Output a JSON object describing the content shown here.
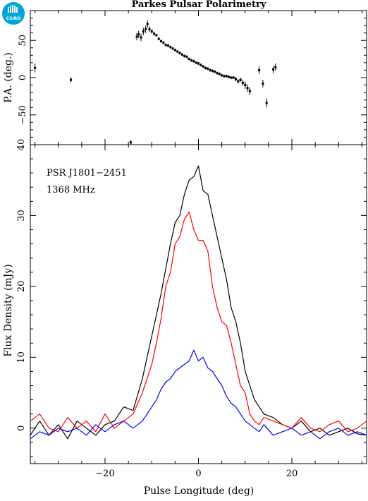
{
  "logo": {
    "text": "CSIRO",
    "color": "#00a6d6"
  },
  "chart_data": [
    {
      "type": "scatter",
      "panel": "position-angle",
      "title": "Parkes Pulsar Polarimetry",
      "ylabel": "P.A. (deg.)",
      "xlim": [
        -36,
        36
      ],
      "ylim": [
        -90,
        90
      ],
      "yticks": [
        -50,
        0,
        50
      ],
      "xticks": [
        -20,
        0,
        20
      ],
      "points": [
        {
          "x": -35.0,
          "y": 13,
          "err": 6
        },
        {
          "x": -27.3,
          "y": -3,
          "err": 4
        },
        {
          "x": -14.5,
          "y": -87,
          "err": 3
        },
        {
          "x": -13.2,
          "y": 55,
          "err": 5
        },
        {
          "x": -12.8,
          "y": 58,
          "err": 5
        },
        {
          "x": -12.3,
          "y": 54,
          "err": 5
        },
        {
          "x": -11.8,
          "y": 62,
          "err": 5
        },
        {
          "x": -11.3,
          "y": 65,
          "err": 5
        },
        {
          "x": -10.9,
          "y": 72,
          "err": 5
        },
        {
          "x": -10.5,
          "y": 65,
          "err": 4
        },
        {
          "x": -10.0,
          "y": 62,
          "err": 3
        },
        {
          "x": -9.5,
          "y": 59,
          "err": 3
        },
        {
          "x": -9.0,
          "y": 57,
          "err": 2
        },
        {
          "x": -8.5,
          "y": 52,
          "err": 2
        },
        {
          "x": -8.0,
          "y": 49,
          "err": 2
        },
        {
          "x": -7.5,
          "y": 47,
          "err": 2
        },
        {
          "x": -7.0,
          "y": 44,
          "err": 2
        },
        {
          "x": -6.5,
          "y": 43,
          "err": 2
        },
        {
          "x": -6.0,
          "y": 41,
          "err": 2
        },
        {
          "x": -5.5,
          "y": 39,
          "err": 2
        },
        {
          "x": -5.0,
          "y": 37,
          "err": 2
        },
        {
          "x": -4.5,
          "y": 35,
          "err": 2
        },
        {
          "x": -4.0,
          "y": 33,
          "err": 2
        },
        {
          "x": -3.5,
          "y": 31,
          "err": 2
        },
        {
          "x": -3.0,
          "y": 29,
          "err": 2
        },
        {
          "x": -2.5,
          "y": 28,
          "err": 2
        },
        {
          "x": -2.0,
          "y": 25,
          "err": 2
        },
        {
          "x": -1.5,
          "y": 23,
          "err": 2
        },
        {
          "x": -1.0,
          "y": 22,
          "err": 2
        },
        {
          "x": -0.5,
          "y": 20,
          "err": 2
        },
        {
          "x": 0.0,
          "y": 19,
          "err": 2
        },
        {
          "x": 0.5,
          "y": 17,
          "err": 2
        },
        {
          "x": 1.0,
          "y": 15,
          "err": 2
        },
        {
          "x": 1.5,
          "y": 13,
          "err": 2
        },
        {
          "x": 2.0,
          "y": 12,
          "err": 2
        },
        {
          "x": 2.5,
          "y": 10,
          "err": 2
        },
        {
          "x": 3.0,
          "y": 9,
          "err": 2
        },
        {
          "x": 3.5,
          "y": 8,
          "err": 2
        },
        {
          "x": 4.0,
          "y": 6,
          "err": 2
        },
        {
          "x": 4.5,
          "y": 5,
          "err": 2
        },
        {
          "x": 5.0,
          "y": 3,
          "err": 2
        },
        {
          "x": 5.5,
          "y": 2,
          "err": 2
        },
        {
          "x": 6.0,
          "y": 2,
          "err": 2
        },
        {
          "x": 6.5,
          "y": 1,
          "err": 2
        },
        {
          "x": 7.0,
          "y": 0,
          "err": 2
        },
        {
          "x": 7.5,
          "y": 0,
          "err": 2
        },
        {
          "x": 8.0,
          "y": -2,
          "err": 3
        },
        {
          "x": 8.5,
          "y": -5,
          "err": 3
        },
        {
          "x": 9.0,
          "y": -3,
          "err": 3
        },
        {
          "x": 9.5,
          "y": -7,
          "err": 4
        },
        {
          "x": 10.0,
          "y": -10,
          "err": 5
        },
        {
          "x": 10.5,
          "y": -14,
          "err": 5
        },
        {
          "x": 11.0,
          "y": -18,
          "err": 5
        },
        {
          "x": 13.0,
          "y": 10,
          "err": 5
        },
        {
          "x": 13.8,
          "y": -8,
          "err": 5
        },
        {
          "x": 14.6,
          "y": -34,
          "err": 6
        },
        {
          "x": 16.0,
          "y": 11,
          "err": 5
        },
        {
          "x": 16.5,
          "y": 14,
          "err": 5
        }
      ]
    },
    {
      "type": "line",
      "panel": "flux-profile",
      "xlabel": "Pulse Longitude (deg)",
      "ylabel": "Flux Density (mJy)",
      "annotations": [
        "PSR J1801−2451",
        "1368 MHz"
      ],
      "xlim": [
        -36,
        36
      ],
      "ylim": [
        -5,
        40
      ],
      "yticks": [
        0,
        10,
        20,
        30,
        40
      ],
      "xticks": [
        -20,
        0,
        20
      ],
      "xtick_labels": [
        "−20",
        "0",
        "20"
      ],
      "series": [
        {
          "color": "#000000",
          "x": [
            -36,
            -34,
            -32,
            -30,
            -28,
            -26,
            -24,
            -22,
            -20,
            -18,
            -16,
            -14,
            -12,
            -10,
            -9,
            -8,
            -7,
            -6,
            -5,
            -4,
            -3,
            -2,
            -1,
            0,
            1,
            2,
            3,
            4,
            5,
            6,
            7,
            8,
            9,
            10,
            11,
            12,
            13,
            14,
            16,
            18,
            20,
            22,
            24,
            26,
            28,
            30,
            32,
            34,
            36
          ],
          "values": [
            -1,
            1,
            -1,
            0.5,
            -1.5,
            1,
            0,
            -1,
            0.5,
            1,
            3,
            2.5,
            7,
            13,
            16,
            19,
            22.5,
            26,
            29,
            30,
            33,
            35,
            35.5,
            37,
            33.5,
            33,
            30,
            27,
            24,
            21,
            17,
            15,
            12,
            8,
            6,
            4,
            3,
            2,
            1.5,
            0.5,
            0,
            1,
            -0.5,
            0,
            -1,
            -0.5,
            0,
            -0.8,
            -1
          ]
        },
        {
          "color": "#ff0000",
          "x": [
            -36,
            -34,
            -32,
            -30,
            -28,
            -26,
            -24,
            -22,
            -20,
            -18,
            -16,
            -14,
            -12,
            -10,
            -9,
            -8,
            -7,
            -6,
            -5,
            -4,
            -3,
            -2,
            -1,
            0,
            1,
            2,
            3,
            4,
            5,
            6,
            7,
            8,
            9,
            10,
            11,
            12,
            13,
            14,
            16,
            18,
            20,
            22,
            24,
            26,
            28,
            30,
            32,
            34,
            36
          ],
          "values": [
            1,
            2,
            0,
            -0.5,
            1.5,
            0,
            1,
            -0.5,
            2,
            0,
            1,
            2,
            5,
            9,
            12,
            15.5,
            20,
            22,
            26,
            27,
            29.5,
            30.5,
            28,
            26.5,
            26.5,
            25,
            20,
            17,
            15,
            14.5,
            12,
            9,
            6,
            5,
            2,
            1,
            0.5,
            1.5,
            1,
            0.5,
            0,
            1.5,
            0,
            -0.5,
            0.5,
            1,
            -0.5,
            0,
            1
          ]
        },
        {
          "color": "#0000ff",
          "x": [
            -36,
            -34,
            -32,
            -30,
            -28,
            -26,
            -24,
            -22,
            -20,
            -18,
            -16,
            -14,
            -12,
            -10,
            -9,
            -8,
            -7,
            -6,
            -5,
            -4,
            -3,
            -2,
            -1,
            0,
            1,
            2,
            3,
            4,
            5,
            6,
            7,
            8,
            9,
            10,
            11,
            12,
            13,
            14,
            16,
            18,
            20,
            22,
            24,
            26,
            28,
            30,
            32,
            34,
            36
          ],
          "values": [
            -1.5,
            -0.5,
            -1,
            0,
            -0.5,
            0,
            -1,
            0.5,
            -0.5,
            0.5,
            1,
            0,
            1,
            3,
            4,
            5.5,
            6.5,
            7,
            8,
            8.5,
            9,
            9.5,
            11,
            9.5,
            10,
            8.5,
            8,
            7,
            6,
            4.5,
            3.5,
            3,
            2,
            1,
            0.5,
            0,
            -0.5,
            0.5,
            -1,
            -0.5,
            0,
            -1,
            -0.5,
            -1.5,
            -0.5,
            0,
            -1,
            -0.5,
            -1
          ]
        }
      ]
    }
  ]
}
